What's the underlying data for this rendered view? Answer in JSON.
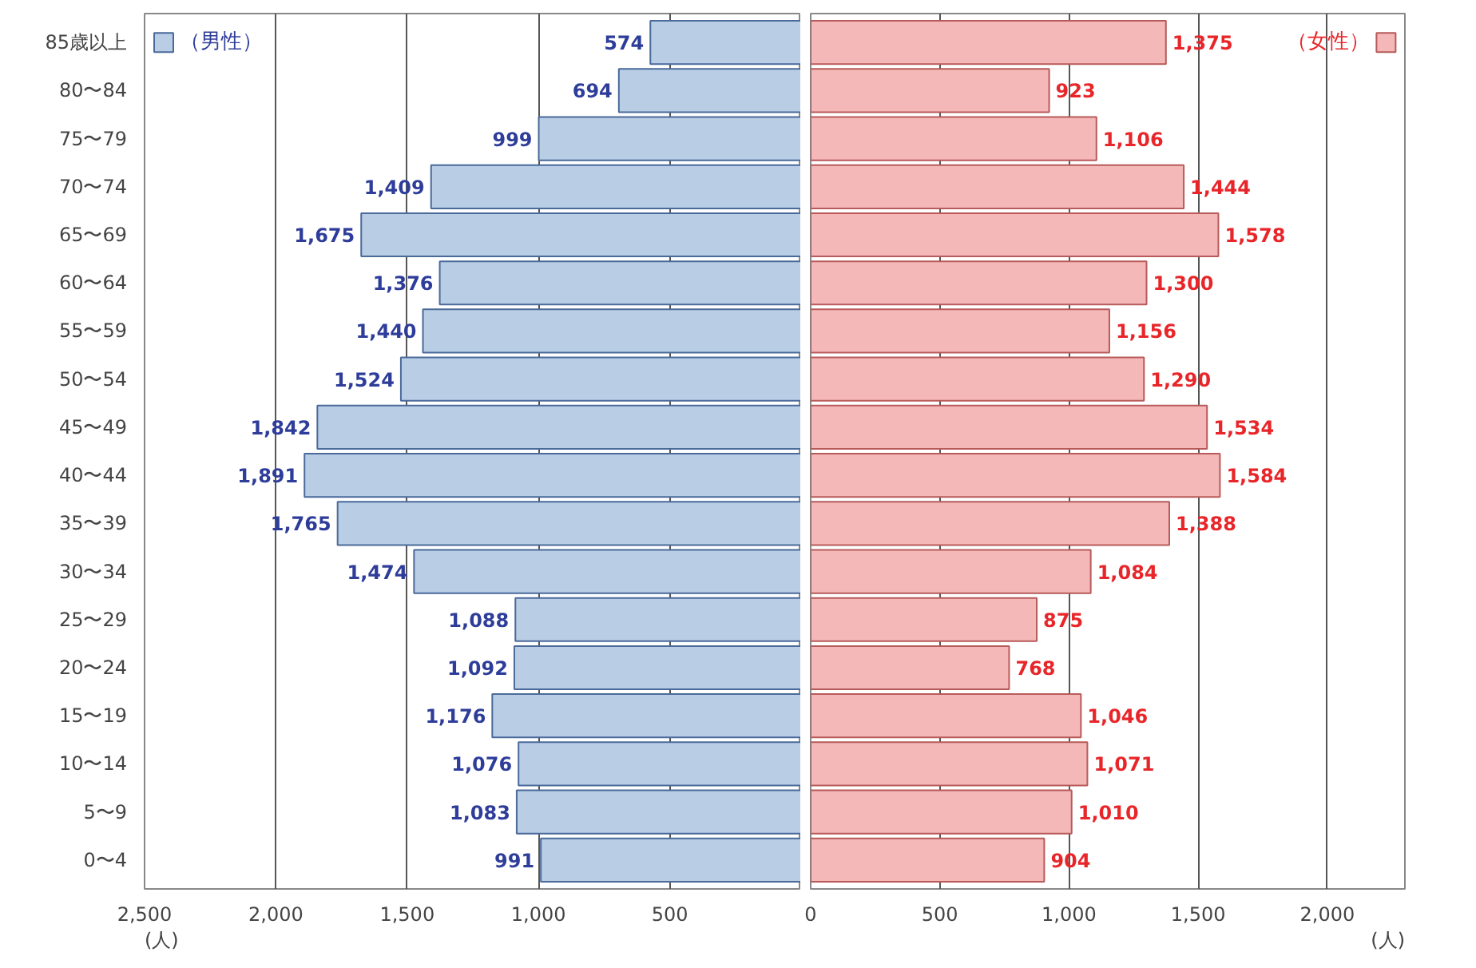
{
  "chart_data": [
    {
      "type": "bar",
      "orientation": "horizontal",
      "categories": [
        "85歳以上",
        "80〜84",
        "75〜79",
        "70〜74",
        "65〜69",
        "60〜64",
        "55〜59",
        "50〜54",
        "45〜49",
        "40〜44",
        "35〜39",
        "30〜34",
        "25〜29",
        "20〜24",
        "15〜19",
        "10〜14",
        "5〜9",
        "0〜4"
      ],
      "series": [
        {
          "name": "（男性）",
          "color": "#b9cde5",
          "values": [
            574,
            694,
            999,
            1409,
            1675,
            1376,
            1440,
            1524,
            1842,
            1891,
            1765,
            1474,
            1088,
            1092,
            1176,
            1076,
            1083,
            991
          ],
          "value_labels": [
            "574",
            "694",
            "999",
            "1,409",
            "1,675",
            "1,376",
            "1,440",
            "1,524",
            "1,842",
            "1,891",
            "1,765",
            "1,474",
            "1,088",
            "1,092",
            "1,176",
            "1,076",
            "1,083",
            "991"
          ]
        }
      ],
      "xlim": [
        2500,
        0
      ],
      "xticks": [
        {
          "value": 2500,
          "label": "2,500"
        },
        {
          "value": 2000,
          "label": "2,000"
        },
        {
          "value": 1500,
          "label": "1,500"
        },
        {
          "value": 1000,
          "label": "1,000"
        },
        500
      ],
      "grid": "x",
      "annotations": [
        "(人)"
      ]
    },
    {
      "type": "bar",
      "orientation": "horizontal",
      "categories": [
        null,
        null,
        null,
        null,
        null,
        null,
        null,
        null,
        null,
        null,
        null,
        null,
        null,
        null,
        null,
        null,
        null,
        null
      ],
      "series": [
        {
          "name": "（女性）",
          "color": "#f4b8b8",
          "values": [
            1375,
            923,
            1106,
            1444,
            1578,
            1300,
            1156,
            1290,
            1534,
            1584,
            1388,
            1084,
            875,
            768,
            1046,
            1071,
            1010,
            904
          ],
          "value_labels": [
            "1,375",
            "923",
            "1,106",
            "1,444",
            "1,578",
            "1,300",
            "1,156",
            "1,290",
            "1,534",
            "1,584",
            "1,388",
            "1,084",
            "875",
            "768",
            "1,046",
            "1,071",
            "1,010",
            "904"
          ]
        }
      ],
      "xlim": [
        0,
        2300
      ],
      "xticks": [
        0,
        500,
        {
          "value": 1000,
          "label": "1,000"
        },
        {
          "value": 1500,
          "label": "1,500"
        },
        {
          "value": 2000,
          "label": "2,000"
        }
      ],
      "grid": "x",
      "tick_labels": "x",
      "annotations": [
        "(人)"
      ]
    }
  ]
}
